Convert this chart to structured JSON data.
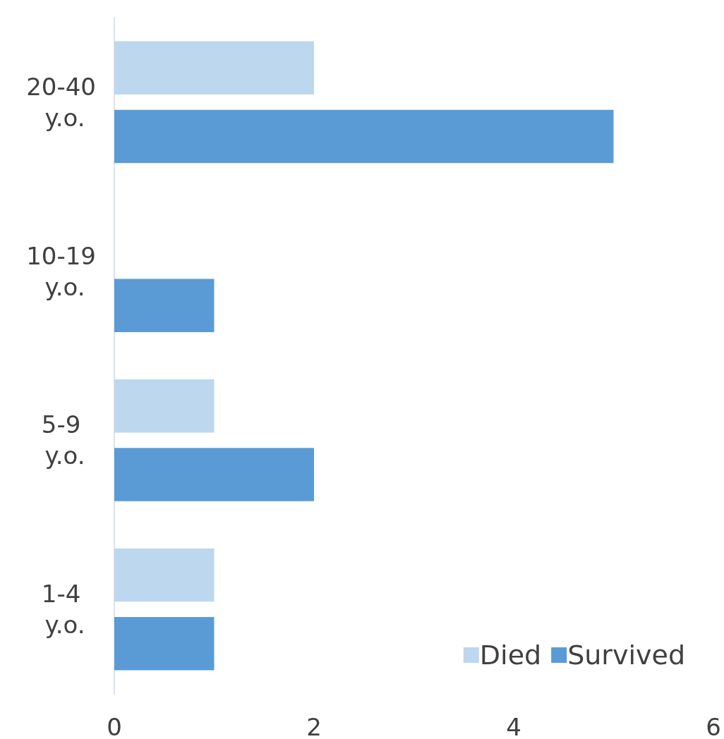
{
  "chart_data": {
    "type": "bar",
    "orientation": "horizontal",
    "categories": [
      "20-40 y.o.",
      "10-19 y.o.",
      "5-9 y.o.",
      "1-4 y.o."
    ],
    "series": [
      {
        "name": "Died",
        "color": "#bdd7ee",
        "values": [
          2,
          0,
          1,
          1
        ]
      },
      {
        "name": "Survived",
        "color": "#5b9bd5",
        "values": [
          5,
          1,
          2,
          1
        ]
      }
    ],
    "xlim": [
      0,
      6
    ],
    "xticks": [
      0,
      2,
      4,
      6
    ],
    "grid": false,
    "legend": "bottom right"
  }
}
